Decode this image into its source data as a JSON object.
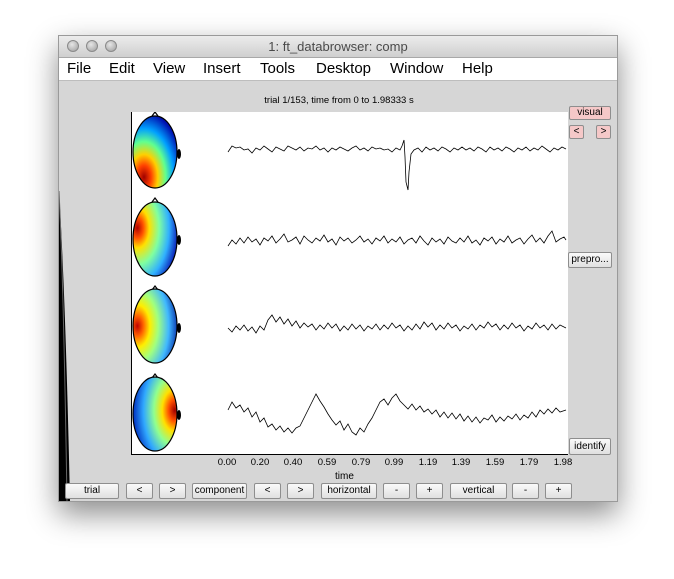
{
  "window": {
    "title": "1: ft_databrowser: comp"
  },
  "menu": [
    "File",
    "Edit",
    "View",
    "Insert",
    "Tools",
    "Desktop",
    "Window",
    "Help"
  ],
  "plot": {
    "title": "trial 1/153, time from 0 to 1.98333 s",
    "xlabel": "time",
    "xticks": [
      "0.00",
      "0.20",
      "0.40",
      "0.59",
      "0.79",
      "0.99",
      "1.19",
      "1.39",
      "1.59",
      "1.79",
      "1.98"
    ]
  },
  "right_buttons": {
    "visual": "visual",
    "prev": "<",
    "next": ">",
    "preproc": "prepro...",
    "identify": "identify"
  },
  "bottom_buttons": {
    "trial": "trial",
    "trial_prev": "<",
    "trial_next": ">",
    "component": "component",
    "component_prev": "<",
    "component_next": ">",
    "horizontal": "horizontal",
    "horizontal_minus": "-",
    "horizontal_plus": "+",
    "vertical": "vertical",
    "vertical_minus": "-",
    "vertical_plus": "+"
  },
  "colors": {
    "visual_button": "#f5c8c8"
  }
}
